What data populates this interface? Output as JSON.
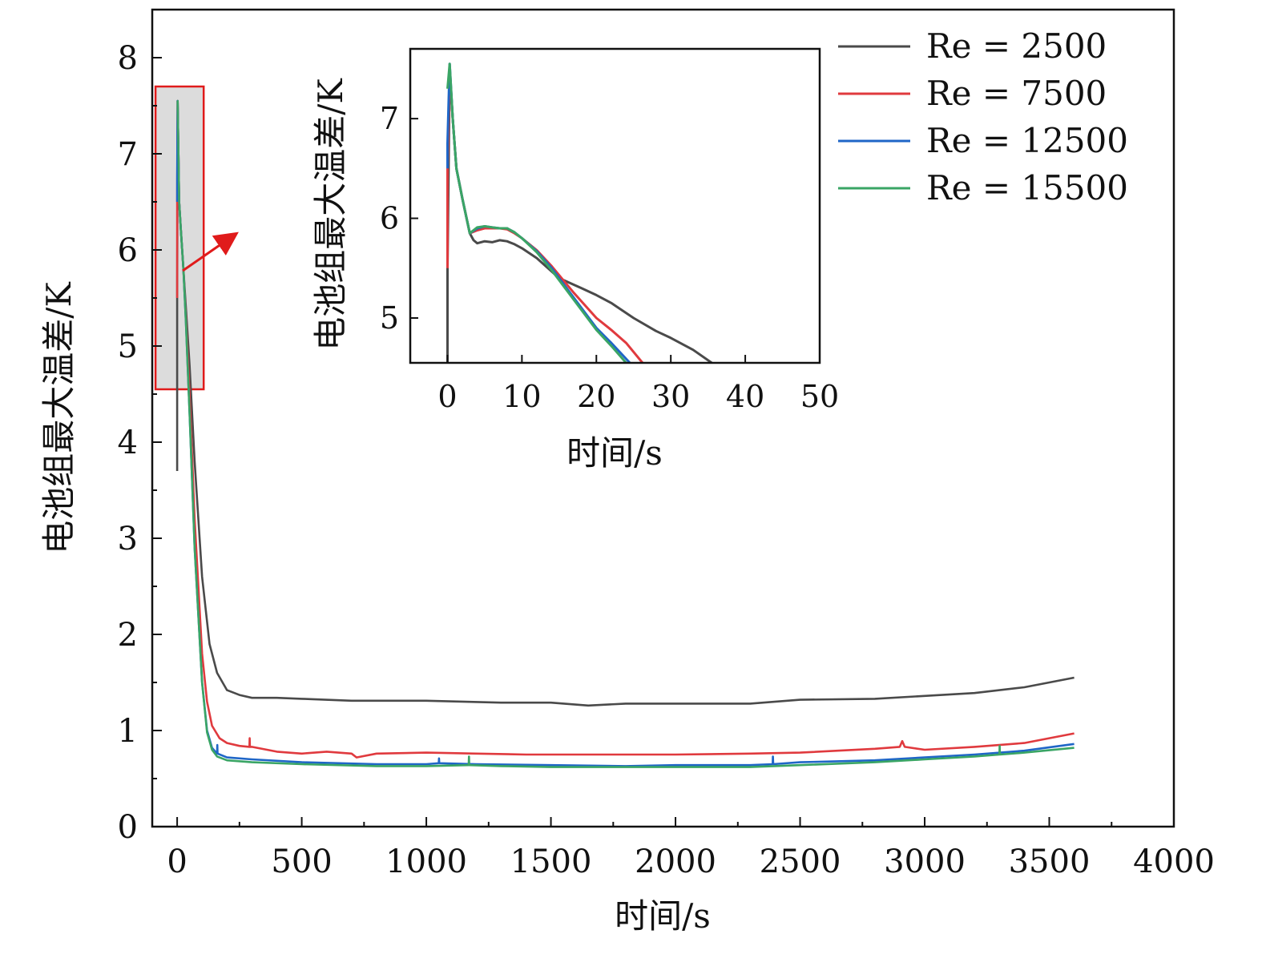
{
  "chart_data": [
    {
      "type": "line",
      "xlabel": "时间/s",
      "ylabel": "电池组最大温差/K",
      "xlim": [
        -100,
        4000
      ],
      "ylim": [
        0,
        8.5
      ],
      "xticks": [
        0,
        500,
        1000,
        1500,
        2000,
        2500,
        3000,
        3500,
        4000
      ],
      "yticks": [
        0,
        1,
        2,
        3,
        4,
        5,
        6,
        7,
        8
      ],
      "x_tick_labels": [
        "0",
        "500",
        "1000",
        "1500",
        "2000",
        "2500",
        "3000",
        "3500",
        "4000"
      ],
      "y_tick_labels": [
        "0",
        "1",
        "2",
        "3",
        "4",
        "5",
        "6",
        "7",
        "8"
      ],
      "legend_position": "top-right",
      "highlight_region": {
        "x": [
          0,
          100
        ],
        "y": [
          4.55,
          7.7
        ]
      },
      "series": [
        {
          "name": "Re = 2500",
          "color": "#4a4a4a",
          "x": [
            0,
            0,
            2,
            5,
            8,
            15,
            25,
            35,
            50,
            70,
            100,
            130,
            160,
            200,
            250,
            300,
            400,
            500,
            700,
            1000,
            1300,
            1500,
            1650,
            1800,
            2000,
            2300,
            2500,
            2800,
            3000,
            3200,
            3400,
            3600
          ],
          "y": [
            3.7,
            5.5,
            7.55,
            7.0,
            6.5,
            6.2,
            5.8,
            5.4,
            4.8,
            3.8,
            2.6,
            1.9,
            1.6,
            1.42,
            1.37,
            1.34,
            1.34,
            1.33,
            1.31,
            1.31,
            1.29,
            1.29,
            1.26,
            1.28,
            1.28,
            1.28,
            1.32,
            1.33,
            1.36,
            1.39,
            1.45,
            1.55
          ]
        },
        {
          "name": "Re = 7500",
          "color": "#e03a3e",
          "x": [
            0,
            0,
            2,
            5,
            8,
            15,
            25,
            35,
            50,
            70,
            100,
            120,
            140,
            170,
            200,
            250,
            290,
            291,
            292,
            300,
            400,
            500,
            600,
            700,
            720,
            800,
            1000,
            1200,
            1400,
            1600,
            1800,
            2000,
            2300,
            2500,
            2800,
            2900,
            2910,
            2920,
            3000,
            3200,
            3400,
            3600
          ],
          "y": [
            5.5,
            6.5,
            7.55,
            7.0,
            6.5,
            6.2,
            5.8,
            5.3,
            4.5,
            3.2,
            1.8,
            1.3,
            1.05,
            0.92,
            0.87,
            0.84,
            0.83,
            0.92,
            0.83,
            0.83,
            0.78,
            0.76,
            0.78,
            0.76,
            0.72,
            0.76,
            0.77,
            0.76,
            0.75,
            0.75,
            0.75,
            0.75,
            0.76,
            0.77,
            0.81,
            0.83,
            0.89,
            0.83,
            0.8,
            0.83,
            0.87,
            0.97
          ]
        },
        {
          "name": "Re = 12500",
          "color": "#1f66c7",
          "x": [
            0,
            0,
            2,
            5,
            8,
            15,
            25,
            35,
            50,
            70,
            100,
            120,
            140,
            160,
            161,
            162,
            200,
            300,
            500,
            800,
            1000,
            1050,
            1051,
            1052,
            1200,
            1500,
            1800,
            2000,
            2300,
            2390,
            2391,
            2392,
            2500,
            2800,
            3000,
            3200,
            3400,
            3600
          ],
          "y": [
            6.5,
            6.75,
            7.55,
            7.0,
            6.5,
            6.2,
            5.8,
            5.25,
            4.3,
            2.9,
            1.5,
            1.0,
            0.82,
            0.76,
            0.85,
            0.76,
            0.72,
            0.7,
            0.67,
            0.65,
            0.65,
            0.66,
            0.71,
            0.66,
            0.65,
            0.64,
            0.63,
            0.64,
            0.64,
            0.65,
            0.73,
            0.65,
            0.67,
            0.69,
            0.72,
            0.75,
            0.79,
            0.86
          ]
        },
        {
          "name": "Re = 15500",
          "color": "#3aa565",
          "x": [
            0,
            2,
            5,
            8,
            15,
            25,
            35,
            50,
            70,
            100,
            120,
            140,
            160,
            200,
            300,
            500,
            800,
            1000,
            1170,
            1171,
            1172,
            1300,
            1500,
            1800,
            2000,
            2300,
            2500,
            2800,
            3000,
            3200,
            3300,
            3301,
            3302,
            3400,
            3600
          ],
          "y": [
            7.55,
            7.55,
            7.0,
            6.5,
            6.2,
            5.8,
            5.25,
            4.3,
            2.9,
            1.5,
            0.98,
            0.8,
            0.73,
            0.69,
            0.67,
            0.65,
            0.63,
            0.63,
            0.64,
            0.73,
            0.64,
            0.63,
            0.62,
            0.62,
            0.62,
            0.62,
            0.64,
            0.67,
            0.7,
            0.73,
            0.75,
            0.84,
            0.75,
            0.77,
            0.82
          ]
        }
      ]
    },
    {
      "type": "line",
      "xlabel": "时间/s",
      "ylabel": "电池组最大温差/K",
      "xlim": [
        -5,
        50
      ],
      "ylim": [
        4.55,
        7.7
      ],
      "xticks": [
        0,
        10,
        20,
        30,
        40,
        50
      ],
      "yticks": [
        5,
        6,
        7
      ],
      "x_tick_labels": [
        "0",
        "10",
        "20",
        "30",
        "40",
        "50"
      ],
      "y_tick_labels": [
        "5",
        "6",
        "7"
      ],
      "series": [
        {
          "name": "Re = 2500",
          "color": "#4a4a4a",
          "x": [
            0,
            0,
            0.3,
            0.7,
            1.2,
            2,
            3,
            3.5,
            4,
            5,
            6,
            7,
            8,
            9,
            10,
            12,
            15,
            18,
            20,
            22,
            25,
            28,
            30,
            33,
            35.5
          ],
          "y": [
            4.55,
            5.5,
            7.5,
            7.0,
            6.5,
            6.2,
            5.85,
            5.78,
            5.75,
            5.77,
            5.76,
            5.78,
            5.77,
            5.74,
            5.7,
            5.6,
            5.4,
            5.3,
            5.23,
            5.15,
            5.0,
            4.87,
            4.8,
            4.68,
            4.55
          ]
        },
        {
          "name": "Re = 7500",
          "color": "#e03a3e",
          "x": [
            0,
            0,
            0.3,
            0.7,
            1.2,
            2,
            3,
            4,
            5,
            6,
            7,
            8,
            9,
            10,
            12,
            14,
            17,
            20,
            22,
            24,
            26.2
          ],
          "y": [
            5.5,
            6.5,
            7.5,
            7.0,
            6.5,
            6.2,
            5.85,
            5.88,
            5.9,
            5.9,
            5.9,
            5.89,
            5.85,
            5.8,
            5.68,
            5.52,
            5.25,
            5.0,
            4.88,
            4.75,
            4.55
          ]
        },
        {
          "name": "Re = 12500",
          "color": "#1f66c7",
          "x": [
            0,
            0,
            0.3,
            0.7,
            1.2,
            2,
            3,
            4,
            5,
            6,
            7,
            8,
            9,
            10,
            12,
            14,
            17,
            20,
            22,
            24.5
          ],
          "y": [
            6.5,
            6.75,
            7.55,
            7.0,
            6.5,
            6.2,
            5.85,
            5.9,
            5.92,
            5.91,
            5.9,
            5.9,
            5.86,
            5.8,
            5.67,
            5.5,
            5.2,
            4.9,
            4.75,
            4.55
          ]
        },
        {
          "name": "Re = 15500",
          "color": "#3aa565",
          "x": [
            0,
            0.3,
            0.7,
            1.2,
            2,
            3,
            4,
            5,
            6,
            7,
            8,
            9,
            10,
            12,
            14,
            17,
            20,
            22,
            24
          ],
          "y": [
            7.3,
            7.55,
            7.0,
            6.5,
            6.2,
            5.85,
            5.91,
            5.92,
            5.91,
            5.9,
            5.9,
            5.86,
            5.8,
            5.66,
            5.48,
            5.18,
            4.88,
            4.72,
            4.55
          ]
        }
      ]
    }
  ]
}
